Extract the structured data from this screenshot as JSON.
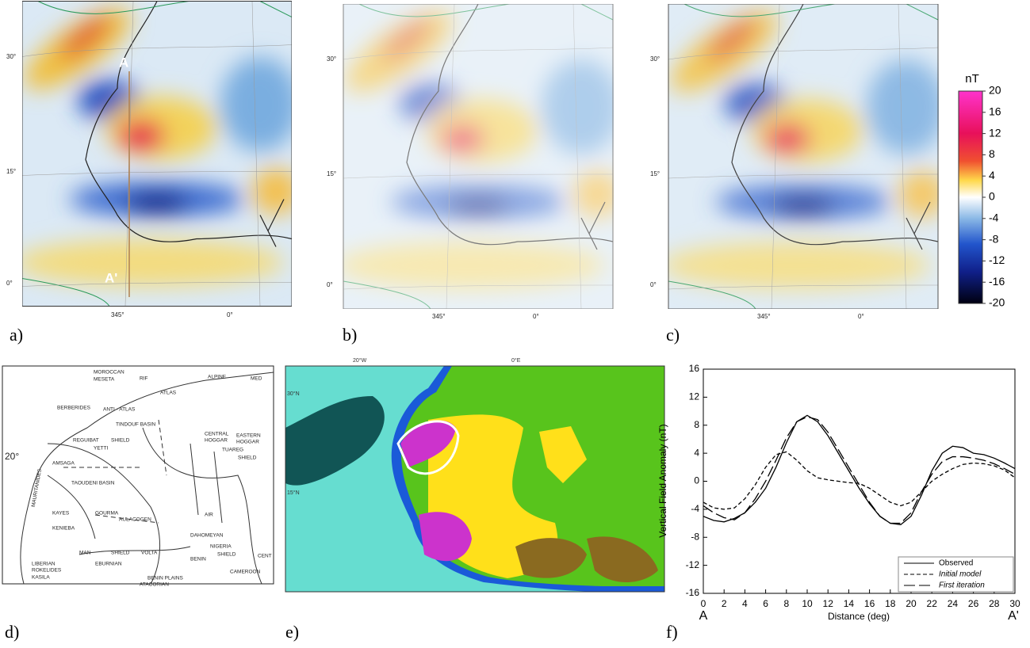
{
  "maps": [
    {
      "label": "a)",
      "lat_labels": [
        "30°",
        "15°",
        "0°"
      ],
      "lon_labels": [
        "345°",
        "0°"
      ],
      "profile_labels": [
        "A",
        "A'"
      ]
    },
    {
      "label": "b)",
      "lat_labels": [
        "30°",
        "15°",
        "0°"
      ],
      "lon_labels": [
        "345°",
        "0°"
      ]
    },
    {
      "label": "c)",
      "lat_labels": [
        "30°",
        "15°",
        "0°"
      ],
      "lon_labels": [
        "345°",
        "0°"
      ]
    }
  ],
  "colorbar": {
    "title": "nT",
    "lim": [
      -20,
      20
    ],
    "ticks": [
      20,
      16,
      12,
      8,
      4,
      0,
      -4,
      -8,
      -12,
      -16,
      -20
    ]
  },
  "geology_map": {
    "label": "d)",
    "labels": [
      "MOROCCAN",
      "MESETA",
      "RIF",
      "ALPINE",
      "MED",
      "ATLAS",
      "BERBERIDES",
      "ANTI - ATLAS",
      "TINDOUF  BASIN",
      "REGUIBAT",
      "SHIELD",
      "YETTI",
      "AMSAGA",
      "CENTRAL",
      "HOGGAR",
      "EASTERN",
      "HOGGAR",
      "TUAREG",
      "SHIELD",
      "20°",
      "TAOUDENI  BASIN",
      "MAURITANIDES",
      "KAYES",
      "KENIEBA",
      "GOURMA",
      "AULACOGEN",
      "AIR",
      "DAHOMEYAN",
      "MAN",
      "SHIELD",
      "EBURNIAN",
      "LIBERIAN",
      "ROKELIDES",
      "KASILA",
      "VOLTA",
      "BENIN",
      "NIGERIA",
      "SHIELD",
      "CAMEROON",
      "BENIN PLAINS",
      "ATACORIAN",
      "CENT"
    ]
  },
  "geologic_map_e": {
    "label": "e)",
    "lon_labels": [
      "20°W",
      "0°E"
    ],
    "lat_labels": [
      "30°N",
      "15°N"
    ]
  },
  "chart_data": {
    "type": "line",
    "label": "f)",
    "ylabel": "Vertical Field Anomaly (nT)",
    "xlabel": "Distance (deg)",
    "start_label": "A",
    "end_label": "A'",
    "x": [
      0,
      1,
      2,
      3,
      4,
      5,
      6,
      7,
      8,
      9,
      10,
      11,
      12,
      13,
      14,
      15,
      16,
      17,
      18,
      19,
      20,
      21,
      22,
      23,
      24,
      25,
      26,
      27,
      28,
      29,
      30
    ],
    "series": [
      {
        "name": "Observed",
        "color": "#000000",
        "style": "solid",
        "values": [
          -5,
          -5.6,
          -5.8,
          -5.3,
          -4.5,
          -3,
          -1,
          2,
          5.5,
          8.5,
          9.4,
          8.5,
          6.5,
          4,
          1.5,
          -1,
          -3.2,
          -5,
          -6,
          -6.2,
          -5,
          -2,
          1.5,
          4,
          5,
          4.8,
          4,
          3.8,
          3.3,
          2.6,
          1.8
        ]
      },
      {
        "name": "Initial model",
        "color": "#000000",
        "style": "dashed",
        "values": [
          -3,
          -3.8,
          -4,
          -3.8,
          -2.5,
          -0.5,
          2,
          3.8,
          4.2,
          3,
          1.5,
          0.5,
          0.2,
          0,
          -0.2,
          -0.3,
          -1,
          -2,
          -3,
          -3.5,
          -3,
          -1.5,
          0,
          1,
          1.8,
          2.4,
          2.6,
          2.5,
          2.2,
          1.6,
          0.5
        ]
      },
      {
        "name": "First iteration",
        "color": "#000000",
        "style": "longdash",
        "values": [
          -3.5,
          -4.5,
          -5.2,
          -5.5,
          -4.5,
          -2.5,
          0,
          3,
          6.2,
          8.5,
          9.2,
          8.8,
          7,
          4.5,
          2,
          -0.5,
          -3,
          -5,
          -6,
          -6,
          -4.5,
          -1.5,
          1,
          2.8,
          3.5,
          3.5,
          3.3,
          3,
          2.5,
          1.8,
          1
        ]
      }
    ],
    "xlim": [
      0,
      30
    ],
    "ylim": [
      -16,
      16
    ],
    "xticks": [
      0,
      2,
      4,
      6,
      8,
      10,
      12,
      14,
      16,
      18,
      20,
      22,
      24,
      26,
      28,
      30
    ],
    "yticks": [
      -16,
      -12,
      -8,
      -4,
      0,
      4,
      8,
      12,
      16
    ]
  }
}
